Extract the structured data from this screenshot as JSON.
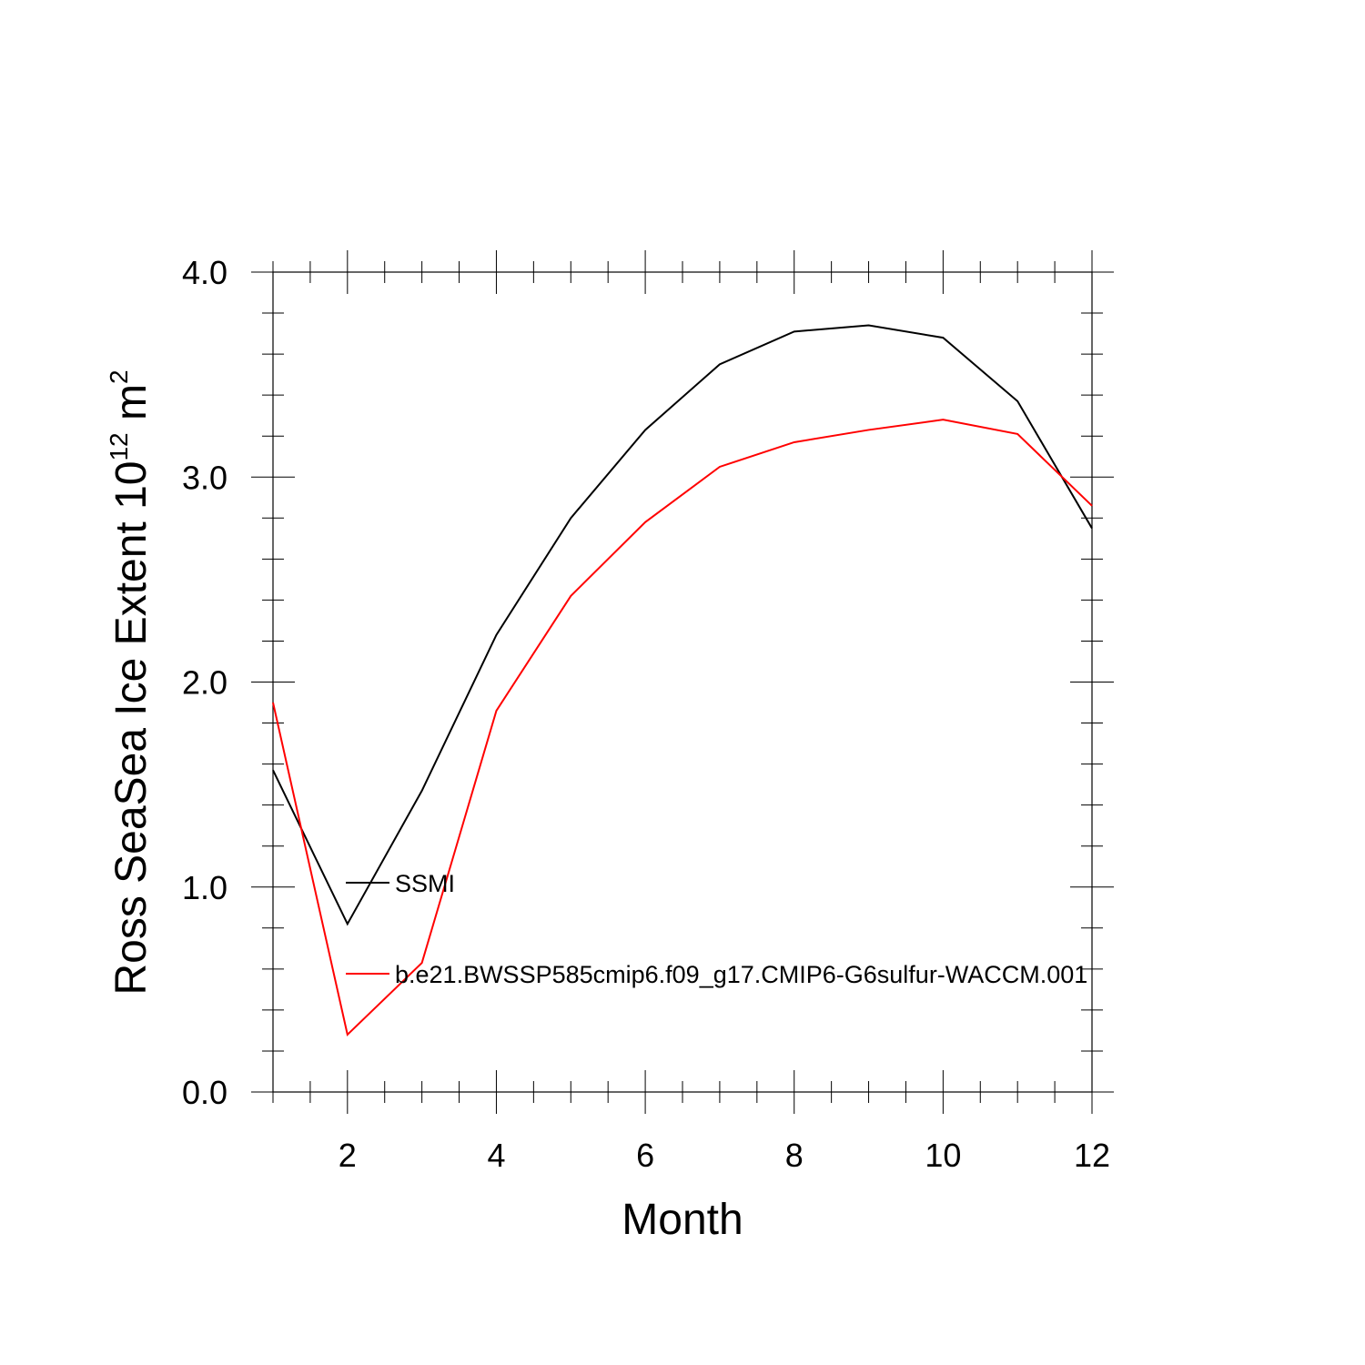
{
  "chart_data": {
    "type": "line",
    "xlabel": "Month",
    "ylabel_parts": {
      "prefix": "Ross SeaSea Ice Extent 10",
      "exp1": "12",
      "mid": " m",
      "exp2": "2"
    },
    "xlim": [
      1,
      12
    ],
    "ylim": [
      0,
      4
    ],
    "x_ticks": [
      2,
      4,
      6,
      8,
      10,
      12
    ],
    "y_ticks": [
      0,
      1,
      2,
      3,
      4
    ],
    "y_tick_labels": [
      "0.0",
      "1.0",
      "2.0",
      "3.0",
      "4.0"
    ],
    "x": [
      1,
      2,
      3,
      4,
      5,
      6,
      7,
      8,
      9,
      10,
      11,
      12
    ],
    "series": [
      {
        "name": "SSMI",
        "color": "#000000",
        "values": [
          1.57,
          0.82,
          1.47,
          2.23,
          2.8,
          3.23,
          3.55,
          3.71,
          3.74,
          3.68,
          3.37,
          2.75
        ]
      },
      {
        "name": "b.e21.BWSSP585cmip6.f09_g17.CMIP6-G6sulfur-WACCM.001",
        "color": "#ff0000",
        "values": [
          1.9,
          0.28,
          0.63,
          1.86,
          2.42,
          2.78,
          3.05,
          3.17,
          3.23,
          3.28,
          3.21,
          2.86
        ]
      }
    ],
    "legend_position": "inside-left"
  }
}
